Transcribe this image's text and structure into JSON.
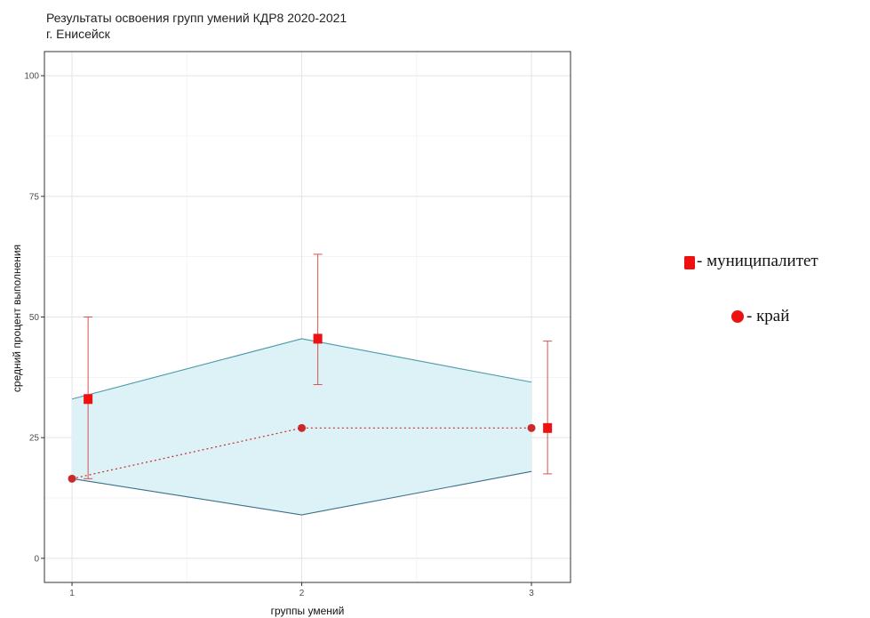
{
  "chart_data": {
    "type": "line",
    "title": "Результаты освоения групп умений КДР8 2020-2021",
    "subtitle": "г. Енисейск",
    "xlabel": "группы умений",
    "ylabel": "средний процент выполнения",
    "x": [
      1,
      2,
      3
    ],
    "x_ticks": [
      "1",
      "2",
      "3"
    ],
    "y_ticks": [
      "0",
      "25",
      "50",
      "75",
      "100"
    ],
    "xlim": [
      0.88,
      3.17
    ],
    "ylim": [
      -5,
      105
    ],
    "grid": true,
    "band": {
      "upper": [
        33,
        45.5,
        36.5
      ],
      "lower": [
        16.5,
        9,
        18
      ],
      "color": "#dcf2f7",
      "edge_color": "#4a9aa8"
    },
    "series": [
      {
        "marker": "square",
        "color": "#ee1111",
        "x_offset": 0.07,
        "values": [
          33,
          45.5,
          27
        ],
        "error_low": [
          16.5,
          36,
          17.5
        ],
        "error_high": [
          50,
          63,
          45
        ]
      },
      {
        "marker": "circle",
        "color": "#cc2a2a",
        "line_style": "dotted",
        "values": [
          16.5,
          27,
          27
        ]
      }
    ],
    "legend": {
      "placement": "right",
      "entries": [
        {
          "marker": "square",
          "label": "- муниципалитет"
        },
        {
          "marker": "circle",
          "label": "- край"
        }
      ]
    }
  }
}
